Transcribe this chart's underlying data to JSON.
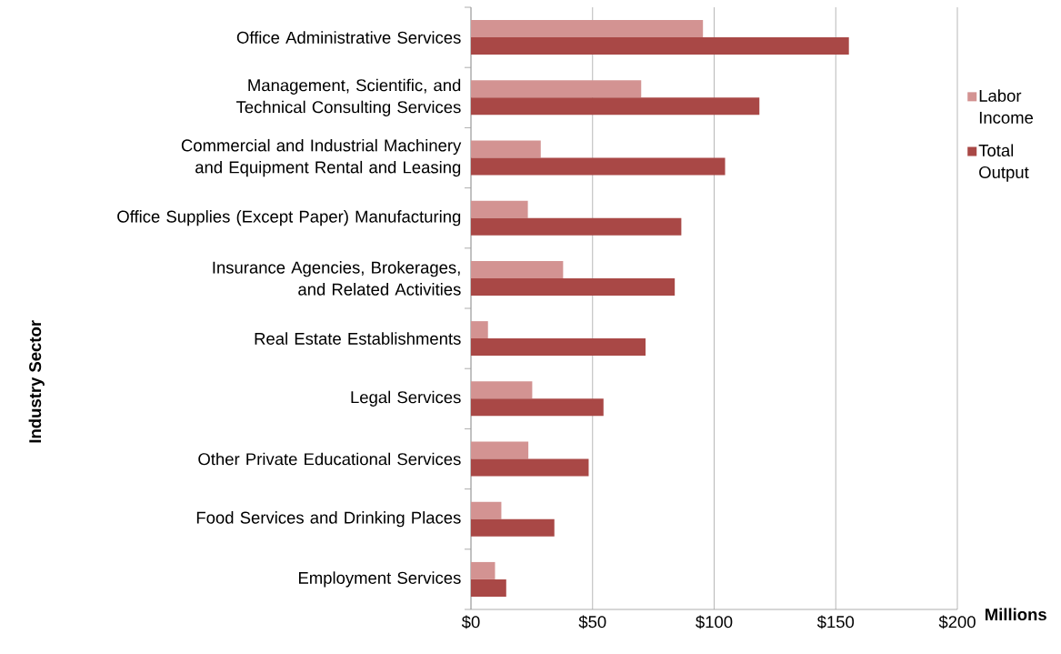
{
  "chart_data": {
    "type": "bar",
    "orientation": "horizontal",
    "ylabel": "Industry Sector",
    "xlabel": "Millions",
    "categories": [
      "Office Administrative Services",
      "Management, Scientific, and Technical Consulting Services",
      "Commercial and Industrial Machinery and Equipment Rental and Leasing",
      "Office Supplies (Except Paper) Manufacturing",
      "Insurance Agencies, Brokerages, and Related Activities",
      "Real Estate Establishments",
      "Legal Services",
      "Other Private Educational Services",
      "Food Services and Drinking Places",
      "Employment Services"
    ],
    "series": [
      {
        "name": "Labor Income",
        "color": "#d39392",
        "values": [
          95.4,
          70.0,
          28.7,
          23.4,
          37.9,
          7.0,
          25.2,
          23.6,
          12.5,
          9.9
        ]
      },
      {
        "name": "Total Output",
        "color": "#a94846",
        "values": [
          155.4,
          118.6,
          104.5,
          86.5,
          83.8,
          71.8,
          54.5,
          48.4,
          34.3,
          14.5
        ]
      }
    ],
    "xlim": [
      0,
      200
    ],
    "xticks": [
      {
        "value": 0,
        "label": "$0"
      },
      {
        "value": 50,
        "label": "$50"
      },
      {
        "value": 100,
        "label": "$100"
      },
      {
        "value": 150,
        "label": "$150"
      },
      {
        "value": 200,
        "label": "$200"
      }
    ],
    "grid": "x",
    "legend": "right"
  }
}
